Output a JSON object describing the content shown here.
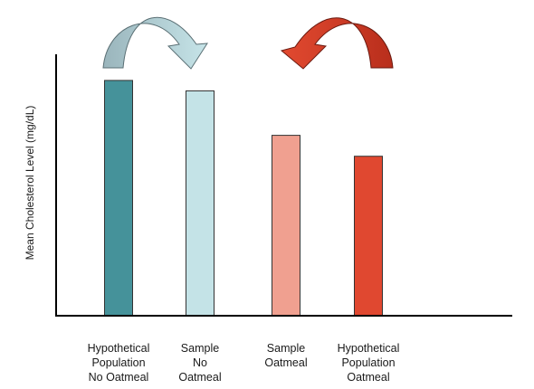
{
  "chart_data": {
    "type": "bar",
    "title": "",
    "xlabel": "",
    "ylabel": "Mean Cholesterol Level (mg/dL)",
    "ylim": [
      0,
      100
    ],
    "grid": false,
    "legend": "none",
    "categories": [
      [
        "Hypothetical",
        "Population",
        "No Oatmeal"
      ],
      [
        "Sample",
        "No",
        "Oatmeal"
      ],
      [
        "Sample",
        "Oatmeal"
      ],
      [
        "Hypothetical",
        "Population",
        "Oatmeal"
      ]
    ],
    "values": [
      90,
      86,
      69,
      61
    ],
    "bar_colors": [
      "#45929a",
      "#c4e3e7",
      "#f0a090",
      "#e04830"
    ],
    "annotations": [
      {
        "type": "curved-arrow",
        "from_category": 0,
        "to_category": 1,
        "colors": [
          "#9ab5bc",
          "#c6e4e8"
        ]
      },
      {
        "type": "curved-arrow",
        "from_category": 3,
        "to_category": 2,
        "colors": [
          "#b82e1c",
          "#e24a30"
        ]
      }
    ]
  }
}
